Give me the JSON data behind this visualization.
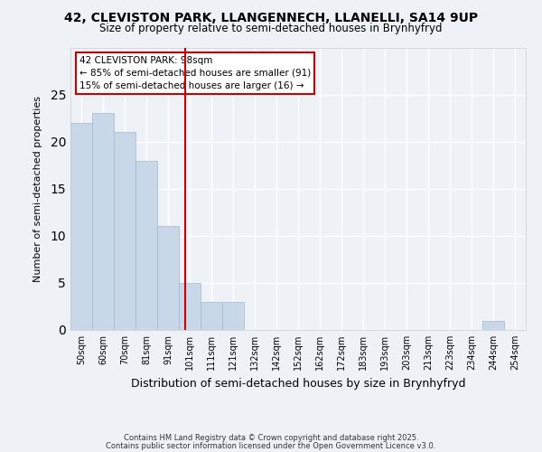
{
  "title1": "42, CLEVISTON PARK, LLANGENNECH, LLANELLI, SA14 9UP",
  "title2": "Size of property relative to semi-detached houses in Brynhyfryd",
  "xlabel": "Distribution of semi-detached houses by size in Brynhyfryd",
  "ylabel": "Number of semi-detached properties",
  "bins": [
    "50sqm",
    "60sqm",
    "70sqm",
    "81sqm",
    "91sqm",
    "101sqm",
    "111sqm",
    "121sqm",
    "132sqm",
    "142sqm",
    "152sqm",
    "162sqm",
    "172sqm",
    "183sqm",
    "193sqm",
    "203sqm",
    "213sqm",
    "223sqm",
    "234sqm",
    "244sqm",
    "254sqm"
  ],
  "values": [
    22,
    23,
    21,
    18,
    11,
    5,
    3,
    3,
    0,
    0,
    0,
    0,
    0,
    0,
    0,
    0,
    0,
    0,
    0,
    1,
    0
  ],
  "subject_label": "42 CLEVISTON PARK: 98sqm",
  "pct_smaller": 85,
  "pct_smaller_n": 91,
  "pct_larger": 15,
  "pct_larger_n": 16,
  "bar_color": "#c8d8e8",
  "bar_edge_color": "#a0b8cc",
  "vline_color": "#cc0000",
  "vline_x_index": 4.8,
  "annotation_box_color": "#ffffff",
  "annotation_box_edge": "#cc0000",
  "background_color": "#eef2f7",
  "grid_color": "#ffffff",
  "footer1": "Contains HM Land Registry data © Crown copyright and database right 2025.",
  "footer2": "Contains public sector information licensed under the Open Government Licence v3.0."
}
